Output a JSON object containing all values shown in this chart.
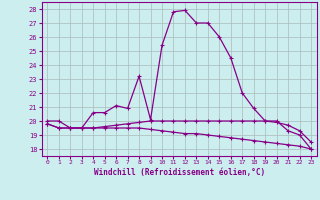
{
  "xlabel": "Windchill (Refroidissement éolien,°C)",
  "background_color": "#cceeee",
  "grid_color": "#aabbbb",
  "line_color": "#880088",
  "xlim": [
    -0.5,
    23.5
  ],
  "ylim": [
    17.5,
    28.5
  ],
  "yticks": [
    18,
    19,
    20,
    21,
    22,
    23,
    24,
    25,
    26,
    27,
    28
  ],
  "xticks": [
    0,
    1,
    2,
    3,
    4,
    5,
    6,
    7,
    8,
    9,
    10,
    11,
    12,
    13,
    14,
    15,
    16,
    17,
    18,
    19,
    20,
    21,
    22,
    23
  ],
  "series1_x": [
    0,
    1,
    2,
    3,
    4,
    5,
    6,
    7,
    8,
    9,
    10,
    11,
    12,
    13,
    14,
    15,
    16,
    17,
    18,
    19,
    20,
    21,
    22,
    23
  ],
  "series1_y": [
    20.0,
    20.0,
    19.5,
    19.5,
    20.6,
    20.6,
    21.1,
    20.9,
    23.2,
    20.1,
    25.4,
    27.8,
    27.9,
    27.0,
    27.0,
    26.0,
    24.5,
    22.0,
    20.9,
    20.0,
    20.0,
    19.3,
    19.0,
    18.0
  ],
  "series2_x": [
    0,
    1,
    2,
    3,
    4,
    5,
    6,
    7,
    8,
    9,
    10,
    11,
    12,
    13,
    14,
    15,
    16,
    17,
    18,
    19,
    20,
    21,
    22,
    23
  ],
  "series2_y": [
    19.8,
    19.5,
    19.5,
    19.5,
    19.5,
    19.6,
    19.7,
    19.8,
    19.9,
    20.0,
    20.0,
    20.0,
    20.0,
    20.0,
    20.0,
    20.0,
    20.0,
    20.0,
    20.0,
    20.0,
    19.9,
    19.7,
    19.3,
    18.5
  ],
  "series3_x": [
    0,
    1,
    2,
    3,
    4,
    5,
    6,
    7,
    8,
    9,
    10,
    11,
    12,
    13,
    14,
    15,
    16,
    17,
    18,
    19,
    20,
    21,
    22,
    23
  ],
  "series3_y": [
    19.8,
    19.5,
    19.5,
    19.5,
    19.5,
    19.5,
    19.5,
    19.5,
    19.5,
    19.4,
    19.3,
    19.2,
    19.1,
    19.1,
    19.0,
    18.9,
    18.8,
    18.7,
    18.6,
    18.5,
    18.4,
    18.3,
    18.2,
    18.0
  ]
}
